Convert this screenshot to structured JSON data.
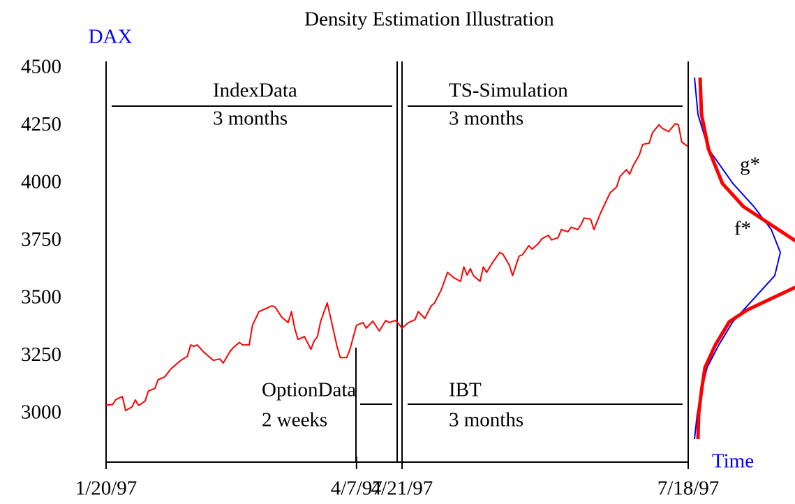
{
  "chart_data": {
    "type": "line",
    "title": "Density Estimation Illustration",
    "ylabel": "DAX",
    "xlabel": "Time",
    "xlim": [
      "1997-01-20",
      "1997-07-18"
    ],
    "xticks": [
      {
        "value": "1997-01-20",
        "label": "1/20/97"
      },
      {
        "value": "1997-04-07",
        "label": "4/7/97"
      },
      {
        "value": "1997-04-21",
        "label": "4/21/97"
      },
      {
        "value": "1997-07-18",
        "label": "7/18/97"
      }
    ],
    "ylim": [
      2790,
      4530
    ],
    "yticks": [
      3000,
      3250,
      3500,
      3750,
      4000,
      4250,
      4500
    ],
    "tick_color": "#0000ff",
    "x": [
      "1997-01-20",
      "1997-01-22",
      "1997-01-23",
      "1997-01-25",
      "1997-01-26",
      "1997-01-28",
      "1997-01-29",
      "1997-01-30",
      "1997-02-01",
      "1997-02-02",
      "1997-02-04",
      "1997-02-05",
      "1997-02-07",
      "1997-02-09",
      "1997-02-11",
      "1997-02-12",
      "1997-02-14",
      "1997-02-15",
      "1997-02-16",
      "1997-02-17",
      "1997-02-19",
      "1997-02-21",
      "1997-02-22",
      "1997-02-24",
      "1997-02-25",
      "1997-02-27",
      "1997-02-28",
      "1997-03-02",
      "1997-03-03",
      "1997-03-05",
      "1997-03-06",
      "1997-03-08",
      "1997-03-10",
      "1997-03-12",
      "1997-03-13",
      "1997-03-15",
      "1997-03-17",
      "1997-03-18",
      "1997-03-19",
      "1997-03-20",
      "1997-03-22",
      "1997-03-24",
      "1997-03-25",
      "1997-03-26",
      "1997-03-27",
      "1997-03-29",
      "1997-03-30",
      "1997-04-01",
      "1997-04-02",
      "1997-04-04",
      "1997-04-05",
      "1997-04-07",
      "1997-04-09",
      "1997-04-10",
      "1997-04-12",
      "1997-04-14",
      "1997-04-16",
      "1997-04-17",
      "1997-04-19",
      "1997-04-20",
      "1997-04-21",
      "1997-04-23",
      "1997-04-25",
      "1997-04-26",
      "1997-04-28",
      "1997-04-30",
      "1997-05-01",
      "1997-05-03",
      "1997-05-05",
      "1997-05-07",
      "1997-05-09",
      "1997-05-10",
      "1997-05-11",
      "1997-05-12",
      "1997-05-13",
      "1997-05-15",
      "1997-05-16",
      "1997-05-17",
      "1997-05-19",
      "1997-05-21",
      "1997-05-22",
      "1997-05-24",
      "1997-05-25",
      "1997-05-27",
      "1997-05-28",
      "1997-05-30",
      "1997-05-31",
      "1997-06-02",
      "1997-06-03",
      "1997-06-05",
      "1997-06-06",
      "1997-06-08",
      "1997-06-09",
      "1997-06-11",
      "1997-06-12",
      "1997-06-14",
      "1997-06-15",
      "1997-06-16",
      "1997-06-18",
      "1997-06-19",
      "1997-06-21",
      "1997-06-23",
      "1997-06-24",
      "1997-06-26",
      "1997-06-27",
      "1997-06-29",
      "1997-06-30",
      "1997-07-01",
      "1997-07-03",
      "1997-07-04",
      "1997-07-06",
      "1997-07-07",
      "1997-07-09",
      "1997-07-10",
      "1997-07-12",
      "1997-07-14",
      "1997-07-15",
      "1997-07-16",
      "1997-07-18"
    ],
    "series": [
      {
        "color": "#ff0000",
        "values": [
          3038,
          3040,
          3062,
          3075,
          3014,
          3030,
          3060,
          3036,
          3055,
          3099,
          3110,
          3148,
          3160,
          3196,
          3220,
          3232,
          3250,
          3299,
          3293,
          3299,
          3268,
          3244,
          3232,
          3238,
          3220,
          3268,
          3286,
          3310,
          3299,
          3299,
          3384,
          3444,
          3456,
          3469,
          3463,
          3420,
          3396,
          3444,
          3372,
          3323,
          3335,
          3280,
          3317,
          3335,
          3402,
          3481,
          3420,
          3293,
          3244,
          3244,
          3280,
          3384,
          3396,
          3372,
          3402,
          3360,
          3405,
          3396,
          3405,
          3390,
          3372,
          3396,
          3408,
          3444,
          3414,
          3469,
          3481,
          3536,
          3614,
          3590,
          3575,
          3638,
          3602,
          3630,
          3599,
          3575,
          3638,
          3614,
          3660,
          3700,
          3694,
          3645,
          3600,
          3685,
          3690,
          3730,
          3715,
          3740,
          3760,
          3775,
          3755,
          3765,
          3800,
          3790,
          3810,
          3800,
          3820,
          3850,
          3845,
          3800,
          3870,
          3930,
          3960,
          3985,
          4030,
          4060,
          4040,
          4075,
          4125,
          4170,
          4175,
          4220,
          4255,
          4240,
          4225,
          4260,
          4255,
          4180,
          4160
        ]
      }
    ],
    "dlim": [
      0,
      1
    ],
    "densities": [
      {
        "name": "g*",
        "color": "#0000ff",
        "width": 2,
        "levels": [
          4460,
          4300,
          4150,
          4000,
          3900,
          3800,
          3700,
          3600,
          3500,
          3400,
          3300,
          3200,
          3100,
          3000,
          2890
        ],
        "density": [
          0,
          0.025,
          0.1,
          0.275,
          0.425,
          0.55,
          0.615,
          0.575,
          0.425,
          0.275,
          0.175,
          0.09,
          0.05,
          0.02,
          0
        ]
      },
      {
        "name": "f*",
        "color": "#ff0000",
        "width": 5,
        "levels": [
          4460,
          4300,
          4150,
          4000,
          3900,
          3800,
          3750,
          3700,
          3650,
          3600,
          3550,
          3500,
          3450,
          3400,
          3300,
          3200,
          3100,
          3000,
          2890
        ],
        "density": [
          0.04,
          0.05,
          0.1,
          0.2,
          0.35,
          0.6,
          0.725,
          0.875,
          0.925,
          0.85,
          0.725,
          0.55,
          0.375,
          0.25,
          0.15,
          0.075,
          0.05,
          0.03,
          0.025
        ]
      }
    ],
    "annotations": [
      "IndexData",
      "3 months",
      "TS-Simulation",
      "3 months",
      "OptionData",
      "2 weeks",
      "IBT",
      "3 months"
    ]
  }
}
